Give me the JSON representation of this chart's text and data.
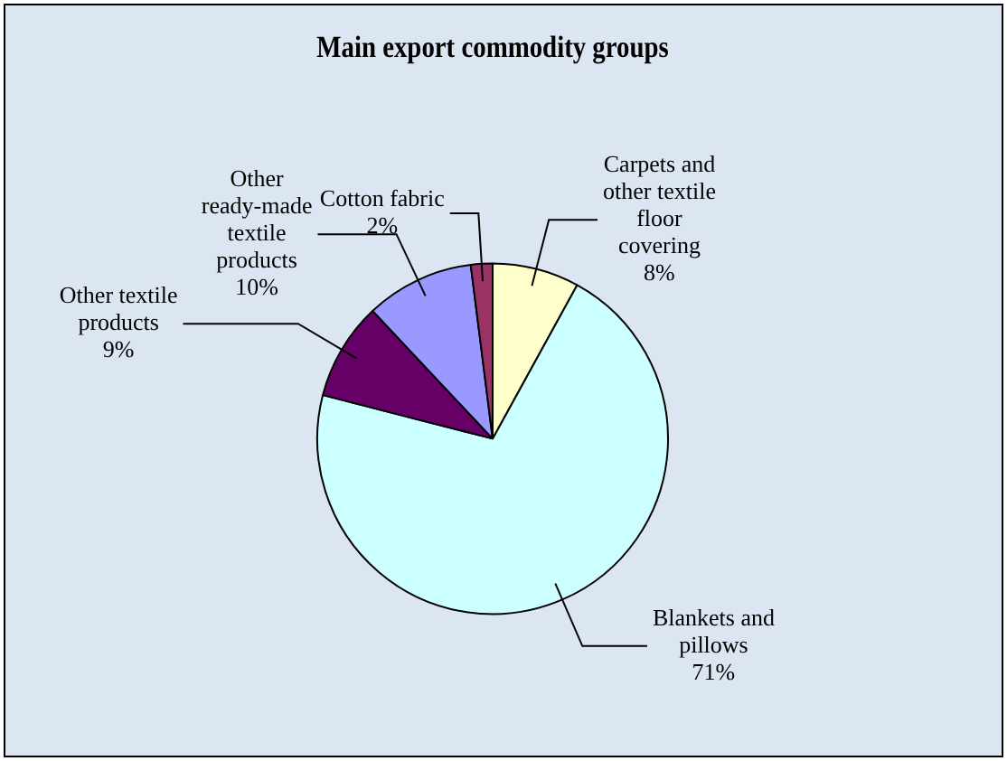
{
  "chart_data": {
    "type": "pie",
    "title": "Main export commodity groups",
    "categories": [
      "Carpets and other textile floor covering",
      "Blankets and pillows",
      "Other textile products",
      "Other ready-made textile products",
      "Cotton fabric"
    ],
    "values": [
      8,
      71,
      9,
      10,
      2
    ],
    "colors": [
      "#ffffcc",
      "#ccffff",
      "#660066",
      "#9999ff",
      "#993366"
    ],
    "value_labels": [
      "8%",
      "71%",
      "9%",
      "10%",
      "2%"
    ],
    "legend": false
  }
}
